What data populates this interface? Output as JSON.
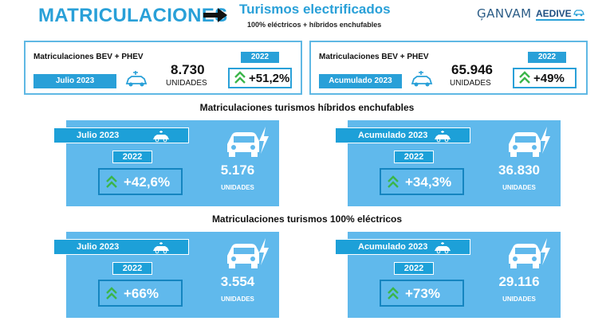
{
  "header": {
    "title": "MATRICULACIONES",
    "subtitle": "Turismos electrificados",
    "subsubtitle": "100% eléctricos + híbridos enchufables",
    "logo_ganvam": "ĢANVAM",
    "logo_aedive": "AEDIVE"
  },
  "summary": [
    {
      "label": "Matriculaciones BEV + PHEV",
      "period": "Julio 2023",
      "value": "8.730",
      "unit": "UNIDADES",
      "year": "2022",
      "change": "+51,2%"
    },
    {
      "label": "Matriculaciones BEV + PHEV",
      "period": "Acumulado 2023",
      "value": "65.946",
      "unit": "UNIDADES",
      "year": "2022",
      "change": "+49%"
    }
  ],
  "phev": {
    "title": "Matriculaciones turismos híbridos enchufables",
    "panels": [
      {
        "period": "Julio 2023",
        "year": "2022",
        "change": "+42,6%",
        "value": "5.176",
        "unit": "UNIDADES"
      },
      {
        "period": "Acumulado 2023",
        "year": "2022",
        "change": "+34,3%",
        "value": "36.830",
        "unit": "UNIDADES"
      }
    ]
  },
  "bev": {
    "title": "Matriculaciones turismos 100% eléctricos",
    "panels": [
      {
        "period": "Julio 2023",
        "year": "2022",
        "change": "+66%",
        "value": "3.554",
        "unit": "UNIDADES"
      },
      {
        "period": "Acumulado 2023",
        "year": "2022",
        "change": "+73%",
        "value": "29.116",
        "unit": "UNIDADES"
      }
    ]
  },
  "colors": {
    "accent": "#29a0d8",
    "panel": "#60b9ec",
    "arrow_green": "#3bb54a"
  },
  "icons": {
    "arrow": "right-arrow-icon",
    "ev_car": "ev-car-icon",
    "chevron": "double-chevron-up-icon",
    "electric_car": "electric-car-icon"
  }
}
